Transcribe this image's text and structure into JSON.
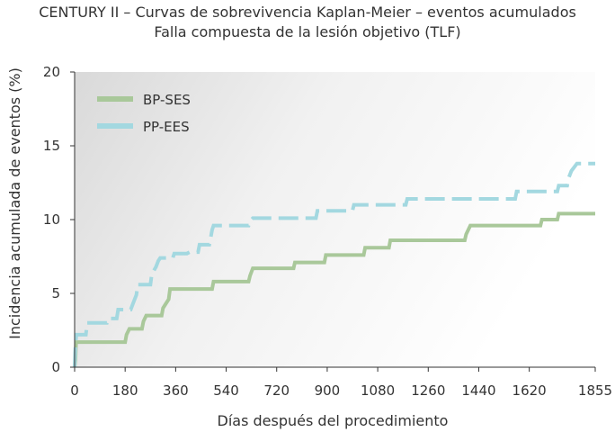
{
  "chart_data": {
    "type": "line",
    "style": "step",
    "title": "CENTURY II – Curvas de sobrevivencia Kaplan-Meier – eventos acumulados",
    "subtitle": "Falla compuesta de la lesión objetivo (TLF)",
    "xlabel": "Días después del procedimiento",
    "ylabel": "Incidencia acumulada de eventos (%)",
    "x_ticks": [
      0,
      180,
      360,
      540,
      720,
      900,
      1080,
      1260,
      1440,
      1620,
      1855
    ],
    "y_ticks": [
      0,
      5,
      10,
      15,
      20
    ],
    "xlim": [
      0,
      1855
    ],
    "ylim": [
      0,
      20
    ],
    "grid": false,
    "legend_position": "top-left",
    "series": [
      {
        "name": "BP-SES",
        "color": "#a9c89a",
        "dashed": false,
        "points": [
          [
            0,
            0
          ],
          [
            3,
            0.5
          ],
          [
            5,
            1.7
          ],
          [
            180,
            1.7
          ],
          [
            185,
            2.2
          ],
          [
            195,
            2.6
          ],
          [
            240,
            2.6
          ],
          [
            245,
            3.1
          ],
          [
            255,
            3.5
          ],
          [
            310,
            3.5
          ],
          [
            315,
            4.0
          ],
          [
            325,
            4.3
          ],
          [
            335,
            4.6
          ],
          [
            340,
            5.3
          ],
          [
            490,
            5.3
          ],
          [
            495,
            5.8
          ],
          [
            620,
            5.8
          ],
          [
            625,
            6.2
          ],
          [
            635,
            6.7
          ],
          [
            780,
            6.7
          ],
          [
            785,
            7.1
          ],
          [
            890,
            7.1
          ],
          [
            895,
            7.6
          ],
          [
            1030,
            7.6
          ],
          [
            1035,
            8.1
          ],
          [
            1120,
            8.1
          ],
          [
            1125,
            8.6
          ],
          [
            1390,
            8.6
          ],
          [
            1395,
            9.0
          ],
          [
            1410,
            9.6
          ],
          [
            1660,
            9.6
          ],
          [
            1665,
            10.0
          ],
          [
            1720,
            10.0
          ],
          [
            1725,
            10.4
          ],
          [
            1855,
            10.4
          ]
        ]
      },
      {
        "name": "PP-EES",
        "color": "#a3d8e0",
        "dashed": true,
        "points": [
          [
            0,
            0
          ],
          [
            2,
            1.0
          ],
          [
            4,
            1.7
          ],
          [
            6,
            2.2
          ],
          [
            40,
            2.2
          ],
          [
            45,
            3.0
          ],
          [
            115,
            3.0
          ],
          [
            120,
            3.3
          ],
          [
            150,
            3.3
          ],
          [
            155,
            3.9
          ],
          [
            200,
            3.9
          ],
          [
            210,
            4.4
          ],
          [
            220,
            4.9
          ],
          [
            225,
            5.6
          ],
          [
            270,
            5.6
          ],
          [
            275,
            6.3
          ],
          [
            290,
            6.8
          ],
          [
            298,
            7.2
          ],
          [
            305,
            7.4
          ],
          [
            350,
            7.4
          ],
          [
            355,
            7.7
          ],
          [
            400,
            7.7
          ],
          [
            410,
            7.8
          ],
          [
            440,
            7.8
          ],
          [
            445,
            8.3
          ],
          [
            480,
            8.3
          ],
          [
            485,
            8.8
          ],
          [
            490,
            9.3
          ],
          [
            495,
            9.6
          ],
          [
            620,
            9.6
          ],
          [
            625,
            9.9
          ],
          [
            635,
            10.1
          ],
          [
            860,
            10.1
          ],
          [
            865,
            10.6
          ],
          [
            990,
            10.6
          ],
          [
            995,
            11.0
          ],
          [
            1180,
            11.0
          ],
          [
            1185,
            11.4
          ],
          [
            1570,
            11.4
          ],
          [
            1575,
            11.9
          ],
          [
            1720,
            11.9
          ],
          [
            1725,
            12.3
          ],
          [
            1755,
            12.3
          ],
          [
            1760,
            12.8
          ],
          [
            1770,
            13.3
          ],
          [
            1790,
            13.8
          ],
          [
            1855,
            13.8
          ]
        ]
      }
    ]
  }
}
